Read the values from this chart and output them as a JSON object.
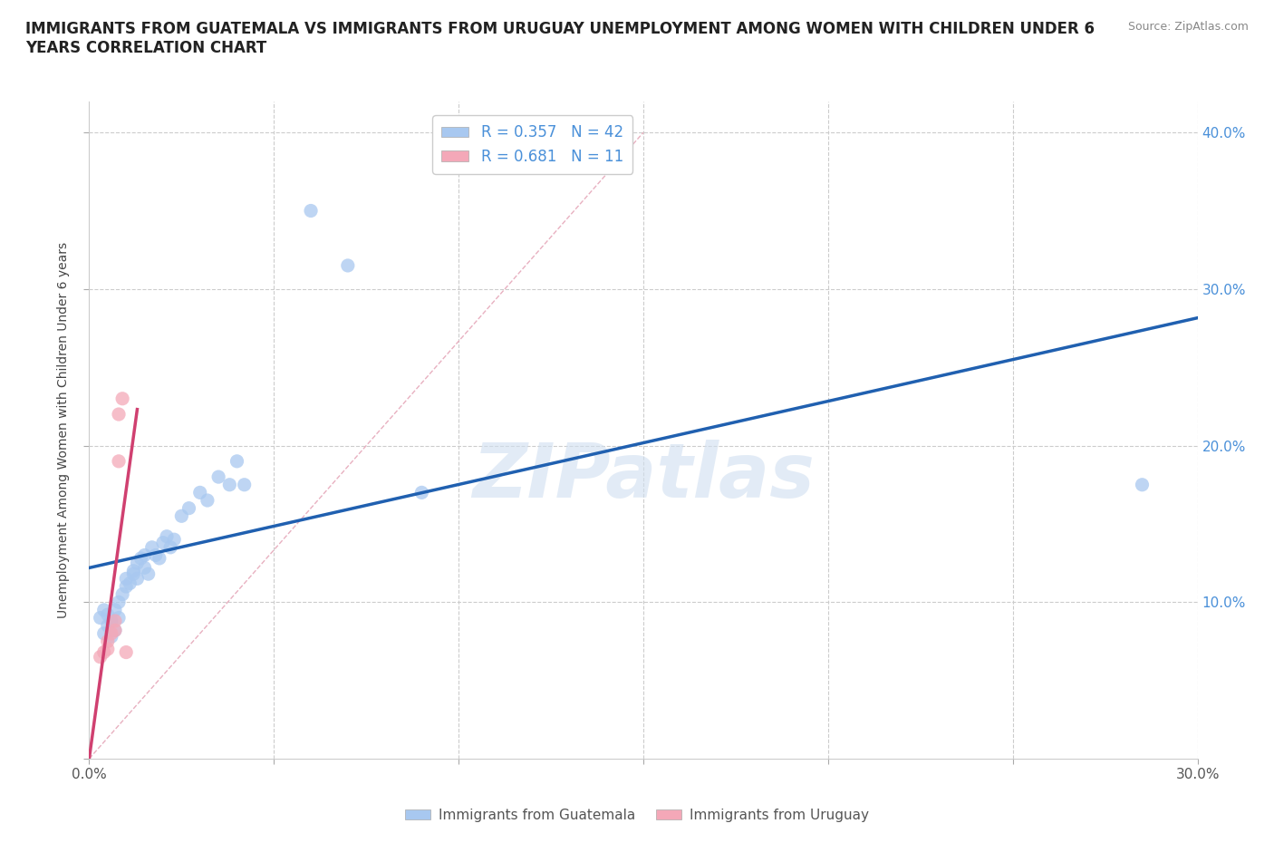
{
  "title": "IMMIGRANTS FROM GUATEMALA VS IMMIGRANTS FROM URUGUAY UNEMPLOYMENT AMONG WOMEN WITH CHILDREN UNDER 6\nYEARS CORRELATION CHART",
  "source": "Source: ZipAtlas.com",
  "ylabel": "Unemployment Among Women with Children Under 6 years",
  "xlim": [
    0,
    0.3
  ],
  "ylim": [
    0,
    0.42
  ],
  "xticks": [
    0.0,
    0.05,
    0.1,
    0.15,
    0.2,
    0.25,
    0.3
  ],
  "yticks": [
    0.0,
    0.1,
    0.2,
    0.3,
    0.4
  ],
  "R_guatemala": 0.357,
  "N_guatemala": 42,
  "R_uruguay": 0.681,
  "N_uruguay": 11,
  "guatemala_color": "#a8c8f0",
  "uruguay_color": "#f4a8b8",
  "guatemala_line_color": "#2060b0",
  "uruguay_line_color": "#d04070",
  "diagonal_color": "#e8b0c0",
  "watermark_color": "#d0dff0",
  "background_color": "#ffffff",
  "grid_color": "#cccccc",
  "right_tick_color": "#4a90d9",
  "guatemala_scatter": [
    [
      0.003,
      0.09
    ],
    [
      0.004,
      0.095
    ],
    [
      0.004,
      0.08
    ],
    [
      0.005,
      0.085
    ],
    [
      0.005,
      0.092
    ],
    [
      0.006,
      0.088
    ],
    [
      0.006,
      0.078
    ],
    [
      0.007,
      0.082
    ],
    [
      0.007,
      0.095
    ],
    [
      0.008,
      0.1
    ],
    [
      0.008,
      0.09
    ],
    [
      0.009,
      0.105
    ],
    [
      0.01,
      0.11
    ],
    [
      0.01,
      0.115
    ],
    [
      0.011,
      0.112
    ],
    [
      0.012,
      0.118
    ],
    [
      0.012,
      0.12
    ],
    [
      0.013,
      0.125
    ],
    [
      0.013,
      0.115
    ],
    [
      0.014,
      0.128
    ],
    [
      0.015,
      0.13
    ],
    [
      0.015,
      0.122
    ],
    [
      0.016,
      0.118
    ],
    [
      0.017,
      0.135
    ],
    [
      0.018,
      0.13
    ],
    [
      0.019,
      0.128
    ],
    [
      0.02,
      0.138
    ],
    [
      0.021,
      0.142
    ],
    [
      0.022,
      0.135
    ],
    [
      0.023,
      0.14
    ],
    [
      0.025,
      0.155
    ],
    [
      0.027,
      0.16
    ],
    [
      0.03,
      0.17
    ],
    [
      0.032,
      0.165
    ],
    [
      0.035,
      0.18
    ],
    [
      0.038,
      0.175
    ],
    [
      0.04,
      0.19
    ],
    [
      0.042,
      0.175
    ],
    [
      0.06,
      0.35
    ],
    [
      0.07,
      0.315
    ],
    [
      0.09,
      0.17
    ],
    [
      0.285,
      0.175
    ]
  ],
  "uruguay_scatter": [
    [
      0.003,
      0.065
    ],
    [
      0.004,
      0.068
    ],
    [
      0.005,
      0.07
    ],
    [
      0.005,
      0.075
    ],
    [
      0.006,
      0.08
    ],
    [
      0.007,
      0.082
    ],
    [
      0.007,
      0.088
    ],
    [
      0.008,
      0.19
    ],
    [
      0.008,
      0.22
    ],
    [
      0.009,
      0.23
    ],
    [
      0.01,
      0.068
    ]
  ]
}
